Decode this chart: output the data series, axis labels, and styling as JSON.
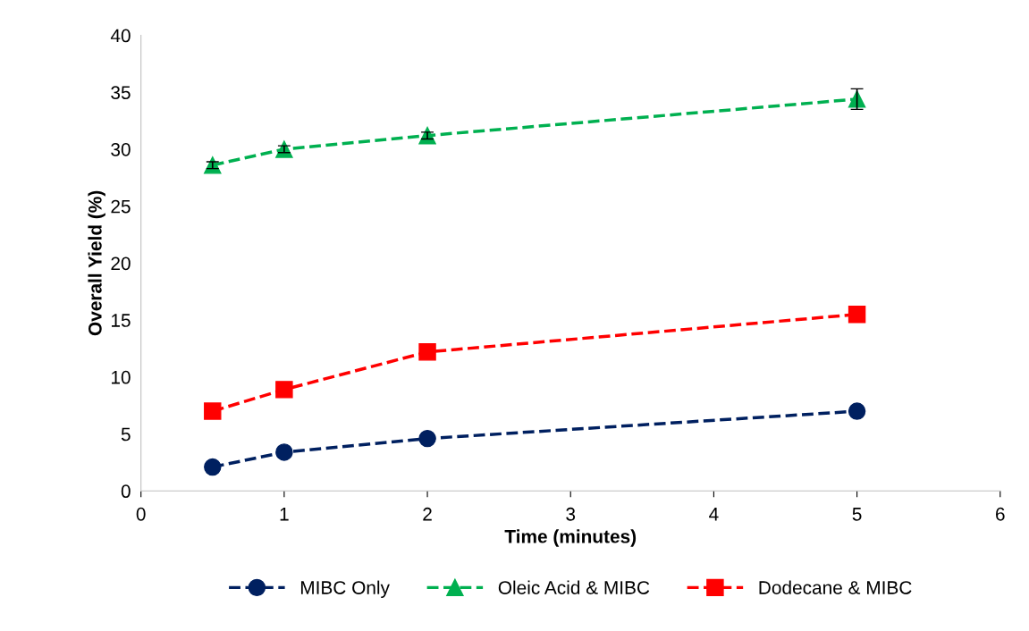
{
  "chart_data": {
    "type": "line",
    "xlabel": "Time (minutes)",
    "ylabel": "Overall Yield (%)",
    "xlim": [
      0,
      6
    ],
    "xticks": [
      0,
      1,
      2,
      3,
      4,
      5,
      6
    ],
    "ylim": [
      0,
      40
    ],
    "yticks": [
      0,
      5,
      10,
      15,
      20,
      25,
      30,
      35,
      40
    ],
    "grid": false,
    "legend": "bottom",
    "line_style": "dashed",
    "series": [
      {
        "name": "MIBC Only",
        "color": "#002060",
        "marker": "circle",
        "x": [
          0.5,
          1,
          2,
          5
        ],
        "values": [
          2.1,
          3.4,
          4.6,
          7.0
        ]
      },
      {
        "name": "Oleic Acid & MIBC",
        "color": "#00b050",
        "marker": "triangle",
        "x": [
          0.5,
          1,
          2,
          5
        ],
        "values": [
          28.6,
          30.0,
          31.2,
          34.4
        ],
        "errors": [
          0.3,
          0.3,
          0.3,
          0.9
        ]
      },
      {
        "name": "Dodecane & MIBC",
        "color": "#ff0000",
        "marker": "square",
        "x": [
          0.5,
          1,
          2,
          5
        ],
        "values": [
          7.0,
          8.9,
          12.2,
          15.5
        ]
      }
    ]
  }
}
